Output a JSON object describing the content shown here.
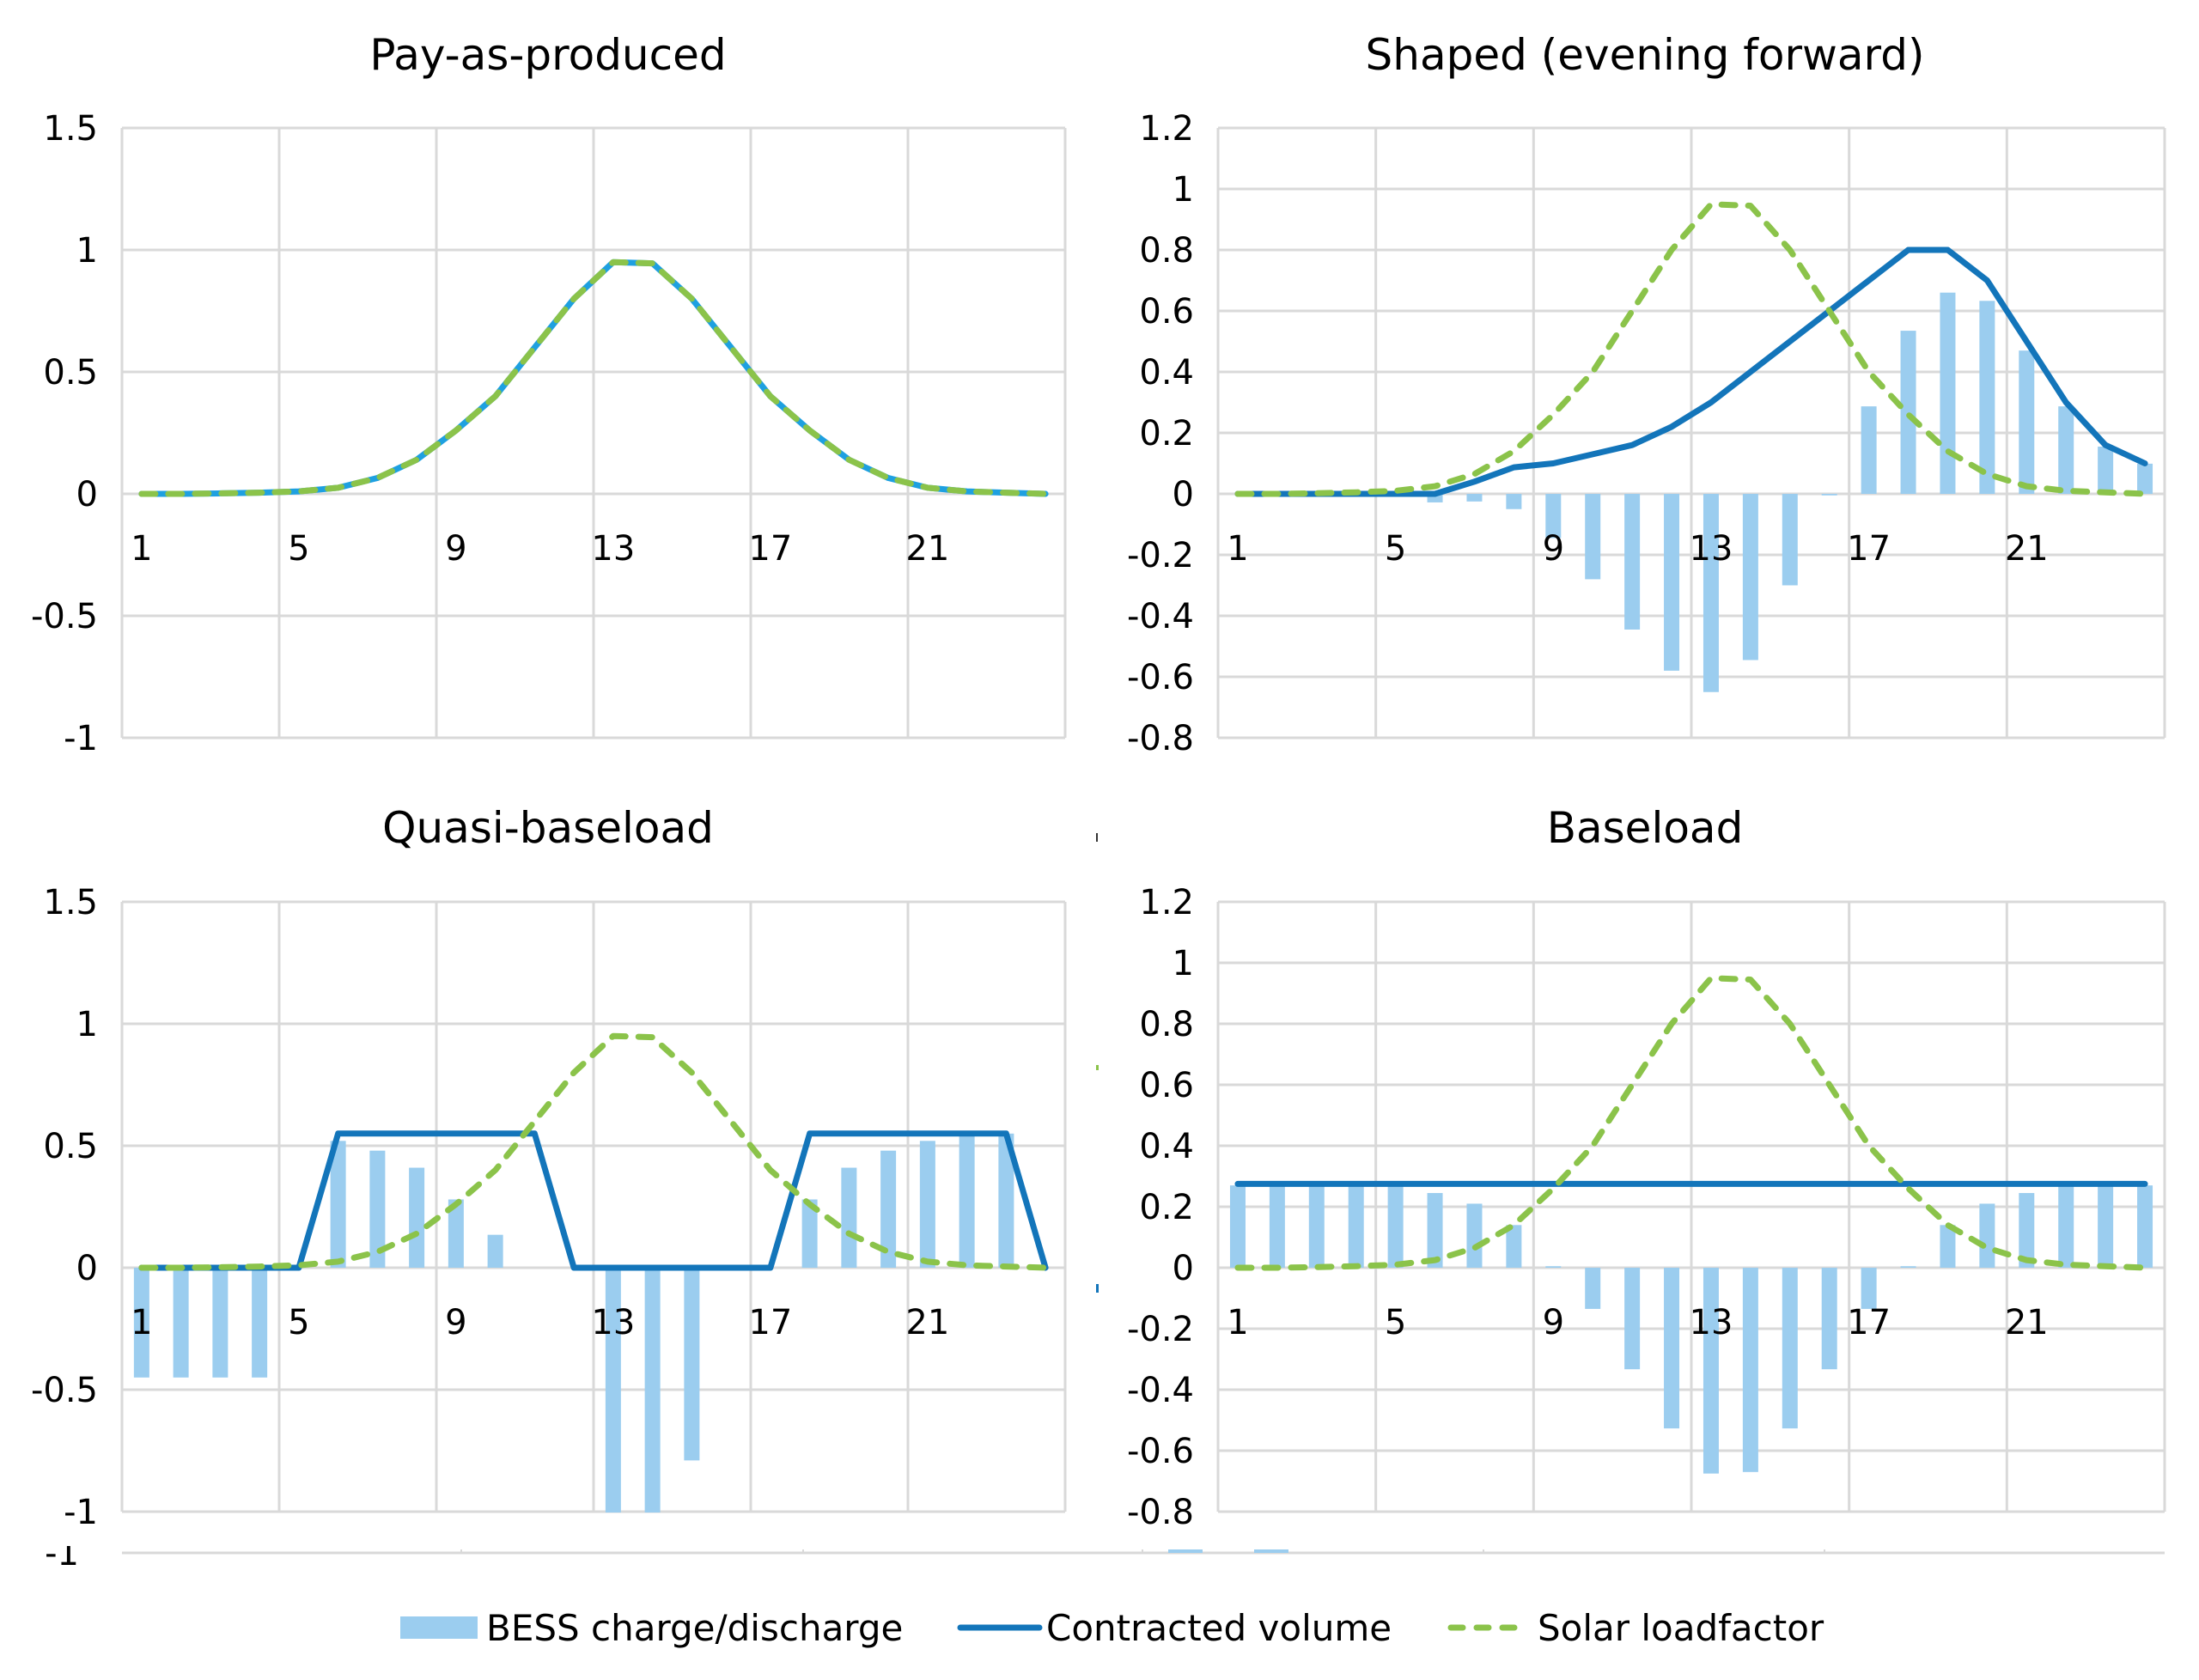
{
  "colors": {
    "bess": "#9BCDEF",
    "contracted": "#1375BA",
    "contracted_pap": "#1EA0E0",
    "solar": "#8BC34A",
    "grid": "#D9D9D9"
  },
  "legend": {
    "position": "bottom-center",
    "items": [
      {
        "name": "BESS charge/discharge",
        "type": "bar"
      },
      {
        "name": "Contracted volume",
        "type": "line"
      },
      {
        "name": "Solar loadfactor",
        "type": "dashed-line"
      }
    ]
  },
  "chart_data": [
    {
      "type": "bar+line",
      "title": "Pay-as-produced",
      "xlabel": "",
      "ylabel": "",
      "x": [
        1,
        2,
        3,
        4,
        5,
        6,
        7,
        8,
        9,
        10,
        11,
        12,
        13,
        14,
        15,
        16,
        17,
        18,
        19,
        20,
        21,
        22,
        23,
        24
      ],
      "xtick_labels": [
        "1",
        "5",
        "9",
        "13",
        "17",
        "21"
      ],
      "ylim": [
        -1,
        1.5
      ],
      "yticks": [
        1.5,
        1,
        0.5,
        0,
        -0.5,
        -1
      ],
      "ytick_labels": [
        "1.5",
        "1",
        "0.5",
        "0",
        "-0.5",
        "-1"
      ],
      "grid": true,
      "series": [
        {
          "name": "BESS charge/discharge",
          "kind": "bar",
          "values": [
            0,
            0,
            0,
            0,
            0,
            0,
            0,
            0,
            0,
            0,
            0,
            0,
            0,
            0,
            0,
            0,
            0,
            0,
            0,
            0,
            0,
            0,
            0,
            0
          ]
        },
        {
          "name": "Contracted volume",
          "kind": "line",
          "values": [
            0,
            0,
            0.002,
            0.005,
            0.01,
            0.025,
            0.065,
            0.14,
            0.26,
            0.4,
            0.6,
            0.8,
            0.95,
            0.945,
            0.8,
            0.6,
            0.4,
            0.26,
            0.14,
            0.065,
            0.025,
            0.01,
            0.005,
            0
          ]
        },
        {
          "name": "Solar loadfactor",
          "kind": "dashed-line",
          "values": [
            0,
            0,
            0.002,
            0.005,
            0.01,
            0.025,
            0.065,
            0.14,
            0.26,
            0.4,
            0.6,
            0.8,
            0.95,
            0.945,
            0.8,
            0.6,
            0.4,
            0.26,
            0.14,
            0.065,
            0.025,
            0.01,
            0.005,
            0
          ]
        }
      ]
    },
    {
      "type": "bar+line",
      "title": "Shaped (evening forward)",
      "xlabel": "",
      "ylabel": "",
      "x": [
        1,
        2,
        3,
        4,
        5,
        6,
        7,
        8,
        9,
        10,
        11,
        12,
        13,
        14,
        15,
        16,
        17,
        18,
        19,
        20,
        21,
        22,
        23,
        24
      ],
      "xtick_labels": [
        "1",
        "5",
        "9",
        "13",
        "17",
        "21"
      ],
      "ylim": [
        -0.8,
        1.2
      ],
      "yticks": [
        1.2,
        1,
        0.8,
        0.6,
        0.4,
        0.2,
        0,
        -0.2,
        -0.4,
        -0.6,
        -0.8
      ],
      "ytick_labels": [
        "1.2",
        "1",
        "0.8",
        "0.6",
        "0.4",
        "0.2",
        "0",
        "-0.2",
        "-0.4",
        "-0.6",
        "-0.8"
      ],
      "grid": true,
      "series": [
        {
          "name": "BESS charge/discharge",
          "kind": "bar",
          "values": [
            0,
            0,
            0,
            0,
            0,
            -0.028,
            -0.025,
            -0.05,
            -0.145,
            -0.28,
            -0.445,
            -0.58,
            -0.65,
            -0.545,
            -0.3,
            -0.005,
            0.287,
            0.535,
            0.66,
            0.633,
            0.47,
            0.287,
            0.155,
            0.099
          ]
        },
        {
          "name": "Contracted volume",
          "kind": "line",
          "values": [
            0,
            0,
            0,
            0,
            0,
            0,
            0.04,
            0.087,
            0.1,
            0.13,
            0.16,
            0.22,
            0.3,
            0.4,
            0.5,
            0.6,
            0.7,
            0.8,
            0.8,
            0.7,
            0.5,
            0.3,
            0.16,
            0.1
          ]
        },
        {
          "name": "Solar loadfactor",
          "kind": "dashed-line",
          "values": [
            0,
            0,
            0.002,
            0.005,
            0.01,
            0.025,
            0.065,
            0.14,
            0.26,
            0.4,
            0.6,
            0.8,
            0.95,
            0.945,
            0.8,
            0.6,
            0.4,
            0.26,
            0.14,
            0.065,
            0.025,
            0.01,
            0.005,
            0
          ]
        }
      ]
    },
    {
      "type": "bar+line",
      "title": "Quasi-baseload",
      "xlabel": "",
      "ylabel": "",
      "x": [
        1,
        2,
        3,
        4,
        5,
        6,
        7,
        8,
        9,
        10,
        11,
        12,
        13,
        14,
        15,
        16,
        17,
        18,
        19,
        20,
        21,
        22,
        23,
        24
      ],
      "xtick_labels": [
        "1",
        "5",
        "9",
        "13",
        "17",
        "21"
      ],
      "ylim": [
        -1,
        1.5
      ],
      "yticks": [
        1.5,
        1,
        0.5,
        0,
        -0.5,
        -1
      ],
      "ytick_labels": [
        "1.5",
        "1",
        "0.5",
        "0",
        "-0.5",
        "-1"
      ],
      "grid": true,
      "series": [
        {
          "name": "BESS charge/discharge",
          "kind": "bar",
          "values": [
            -0.45,
            -0.45,
            -0.45,
            -0.45,
            0,
            0.52,
            0.48,
            0.41,
            0.28,
            0.135,
            0,
            0,
            -1.1,
            -1.1,
            -0.79,
            0,
            0,
            0.28,
            0.41,
            0.48,
            0.52,
            0.55,
            0.55,
            0
          ]
        },
        {
          "name": "Contracted volume",
          "kind": "line",
          "values": [
            0,
            0,
            0,
            0,
            0,
            0.55,
            0.55,
            0.55,
            0.55,
            0.55,
            0.55,
            0,
            0,
            0,
            0,
            0,
            0,
            0.55,
            0.55,
            0.55,
            0.55,
            0.55,
            0.55,
            0
          ]
        },
        {
          "name": "Solar loadfactor",
          "kind": "dashed-line",
          "values": [
            0,
            0,
            0.002,
            0.005,
            0.01,
            0.025,
            0.065,
            0.14,
            0.26,
            0.4,
            0.6,
            0.8,
            0.95,
            0.945,
            0.8,
            0.6,
            0.4,
            0.26,
            0.14,
            0.065,
            0.025,
            0.01,
            0.005,
            0
          ]
        }
      ]
    },
    {
      "type": "bar+line",
      "title": "Baseload",
      "xlabel": "",
      "ylabel": "",
      "x": [
        1,
        2,
        3,
        4,
        5,
        6,
        7,
        8,
        9,
        10,
        11,
        12,
        13,
        14,
        15,
        16,
        17,
        18,
        19,
        20,
        21,
        22,
        23,
        24
      ],
      "xtick_labels": [
        "1",
        "5",
        "9",
        "13",
        "17",
        "21"
      ],
      "ylim": [
        -0.8,
        1.2
      ],
      "yticks": [
        1.2,
        1,
        0.8,
        0.6,
        0.4,
        0.2,
        0,
        -0.2,
        -0.4,
        -0.6,
        -0.8
      ],
      "ytick_labels": [
        "1.2",
        "1",
        "0.8",
        "0.6",
        "0.4",
        "0.2",
        "0",
        "-0.2",
        "-0.4",
        "-0.6",
        "-0.8"
      ],
      "grid": true,
      "series": [
        {
          "name": "BESS charge/discharge",
          "kind": "bar",
          "values": [
            0.27,
            0.27,
            0.27,
            0.27,
            0.27,
            0.245,
            0.21,
            0.14,
            0.005,
            -0.135,
            -0.333,
            -0.527,
            -0.675,
            -0.67,
            -0.527,
            -0.333,
            -0.135,
            0.005,
            0.14,
            0.21,
            0.245,
            0.27,
            0.27,
            0.27
          ]
        },
        {
          "name": "Contracted volume",
          "kind": "line",
          "values": [
            0.275,
            0.275,
            0.275,
            0.275,
            0.275,
            0.275,
            0.275,
            0.275,
            0.275,
            0.275,
            0.275,
            0.275,
            0.275,
            0.275,
            0.275,
            0.275,
            0.275,
            0.275,
            0.275,
            0.275,
            0.275,
            0.275,
            0.275,
            0.275
          ]
        },
        {
          "name": "Solar loadfactor",
          "kind": "dashed-line",
          "values": [
            0,
            0,
            0.002,
            0.005,
            0.01,
            0.025,
            0.065,
            0.14,
            0.26,
            0.4,
            0.6,
            0.8,
            0.95,
            0.945,
            0.8,
            0.6,
            0.4,
            0.26,
            0.14,
            0.065,
            0.025,
            0.01,
            0.005,
            0
          ]
        }
      ]
    }
  ],
  "artifacts": {
    "stray_label": "-1"
  }
}
